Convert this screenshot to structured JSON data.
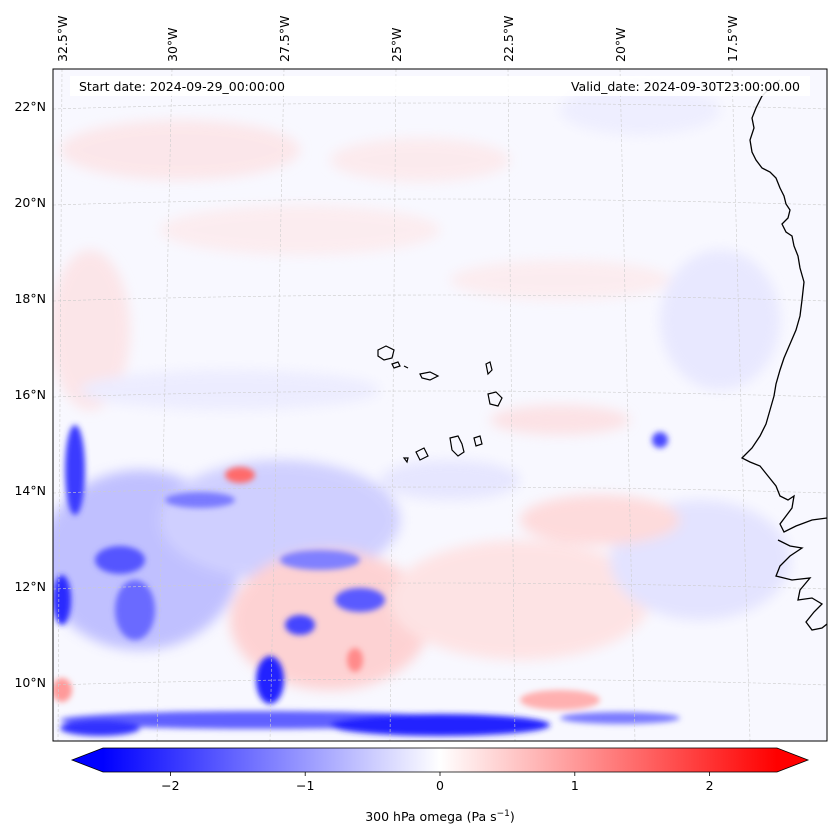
{
  "header": {
    "start_date": "Start date: 2024-09-29_00:00:00",
    "valid_date": "Valid_date: 2024-09-30T23:00:00.00"
  },
  "longitude_labels": [
    "32.5°W",
    "30°W",
    "27.5°W",
    "25°W",
    "22.5°W",
    "20°W",
    "17.5°W"
  ],
  "latitude_labels": [
    "22°N",
    "20°N",
    "18°N",
    "16°N",
    "14°N",
    "12°N",
    "10°N"
  ],
  "colorbar": {
    "ticks": [
      "−2",
      "−1",
      "0",
      "1",
      "2"
    ],
    "tick_values": [
      -2,
      -1,
      0,
      1,
      2
    ],
    "range": [
      -2.5,
      2.5
    ],
    "label_prefix": "300 hPa omega (Pa s",
    "label_exponent": "−1",
    "label_suffix": ")",
    "color_min": "#0000ff",
    "color_mid": "#ffffff",
    "color_max": "#ff0000"
  },
  "map": {
    "field": "300 hPa omega",
    "lon_range": [
      -33,
      -16
    ],
    "lat_range": [
      9,
      23
    ],
    "coastline_color": "#000000",
    "gridline_color": "#cccccc"
  }
}
